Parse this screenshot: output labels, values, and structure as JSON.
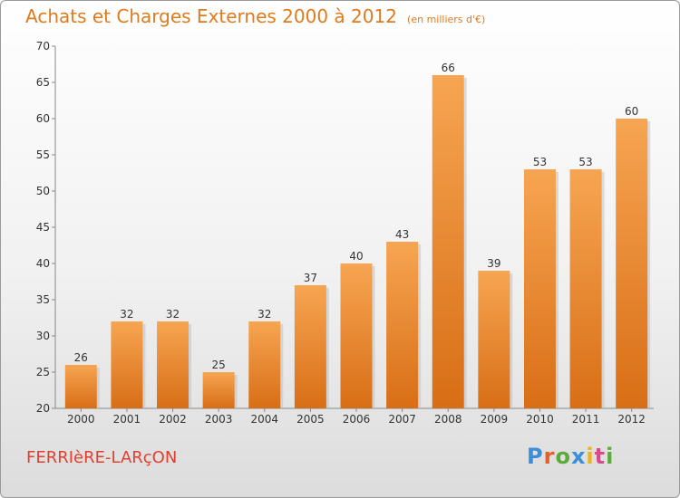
{
  "chart_data": {
    "type": "bar",
    "title": "Achats et Charges Externes 2000 à 2012",
    "subtitle": "(en milliers d'€)",
    "categories": [
      "2000",
      "2001",
      "2002",
      "2003",
      "2004",
      "2005",
      "2006",
      "2007",
      "2008",
      "2009",
      "2010",
      "2011",
      "2012"
    ],
    "values": [
      26,
      32,
      32,
      25,
      32,
      37,
      40,
      43,
      66,
      39,
      53,
      53,
      60
    ],
    "ylim": [
      20,
      70
    ],
    "yticks": [
      20,
      25,
      30,
      35,
      40,
      45,
      50,
      55,
      60,
      65,
      70
    ],
    "xlabel": "",
    "ylabel": "",
    "grid": false,
    "data_labels": true,
    "bar_color_top": "#f7a552",
    "bar_color_bottom": "#d86e16"
  },
  "footer": {
    "commune": "FERRIèRE-LARçON",
    "brand": "Proxiti",
    "brand_colors": [
      "#3a8fd8",
      "#e0622a",
      "#5aac3a",
      "#3a8fd8",
      "#e8b420",
      "#d94a8c",
      "#5aac3a"
    ]
  }
}
